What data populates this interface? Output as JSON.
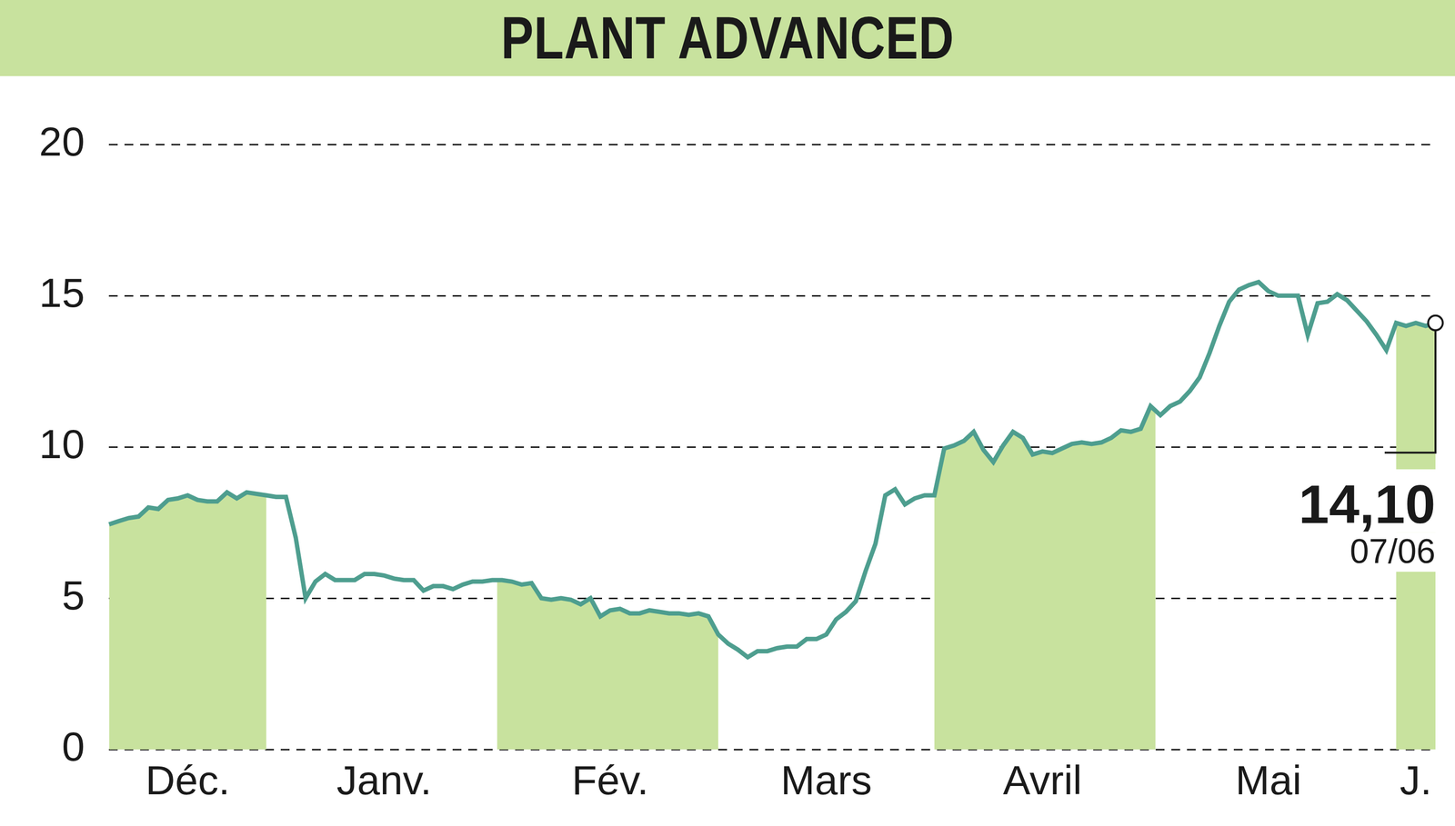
{
  "chart_data": {
    "type": "line",
    "title": "PLANT ADVANCED",
    "categories": [
      null,
      null,
      null,
      null,
      null,
      null,
      null,
      null,
      "Déc.",
      null,
      null,
      null,
      null,
      null,
      null,
      null,
      null,
      null,
      null,
      null,
      null,
      null,
      null,
      null,
      null,
      null,
      null,
      null,
      "Janv.",
      null,
      null,
      null,
      null,
      null,
      null,
      null,
      null,
      null,
      null,
      null,
      null,
      null,
      null,
      null,
      null,
      null,
      null,
      null,
      null,
      null,
      null,
      "Fév.",
      null,
      null,
      null,
      null,
      null,
      null,
      null,
      null,
      null,
      null,
      null,
      null,
      null,
      null,
      null,
      null,
      null,
      null,
      null,
      null,
      null,
      "Mars",
      null,
      null,
      null,
      null,
      null,
      null,
      null,
      null,
      null,
      null,
      null,
      null,
      null,
      null,
      null,
      null,
      null,
      null,
      null,
      null,
      null,
      "Avril",
      null,
      null,
      null,
      null,
      null,
      null,
      null,
      null,
      null,
      null,
      null,
      null,
      null,
      null,
      null,
      null,
      null,
      null,
      null,
      null,
      null,
      null,
      "Mai",
      null,
      null,
      null,
      null,
      null,
      null,
      null,
      null,
      null,
      null,
      null,
      null,
      null,
      null,
      "J.",
      null,
      null
    ],
    "series": [
      {
        "color": "#4e9e8f",
        "values": [
          7.44,
          7.55,
          7.65,
          7.7,
          8.0,
          7.95,
          8.25,
          8.3,
          8.4,
          8.25,
          8.2,
          8.2,
          8.5,
          8.3,
          8.5,
          8.45,
          8.4,
          8.35,
          8.35,
          7.0,
          5.0,
          5.55,
          5.8,
          5.6,
          5.6,
          5.6,
          5.8,
          5.8,
          5.75,
          5.65,
          5.6,
          5.6,
          5.25,
          5.4,
          5.4,
          5.3,
          5.45,
          5.55,
          5.55,
          5.6,
          5.6,
          5.55,
          5.45,
          5.5,
          5.0,
          4.95,
          5.0,
          4.95,
          4.8,
          5.0,
          4.4,
          4.6,
          4.65,
          4.5,
          4.5,
          4.6,
          4.55,
          4.5,
          4.5,
          4.45,
          4.5,
          4.4,
          3.8,
          3.5,
          3.3,
          3.05,
          3.25,
          3.25,
          3.35,
          3.4,
          3.4,
          3.65,
          3.65,
          3.8,
          4.3,
          4.55,
          4.9,
          5.9,
          6.8,
          8.4,
          8.6,
          8.1,
          8.3,
          8.4,
          8.4,
          9.95,
          10.05,
          10.2,
          10.5,
          9.9,
          9.5,
          10.05,
          10.5,
          10.3,
          9.75,
          9.85,
          9.8,
          9.95,
          10.1,
          10.15,
          10.1,
          10.15,
          10.3,
          10.55,
          10.5,
          10.6,
          11.35,
          11.05,
          11.35,
          11.5,
          11.85,
          12.3,
          13.1,
          14.0,
          14.8,
          15.2,
          15.35,
          15.45,
          15.15,
          15.0,
          15.0,
          15.0,
          13.7,
          14.75,
          14.8,
          15.05,
          14.85,
          14.5,
          14.15,
          13.7,
          13.2,
          14.1,
          14.0,
          14.1,
          14.0,
          14.1
        ]
      }
    ],
    "ylim": [
      0,
      20
    ],
    "yticks": [
      0,
      5,
      10,
      15,
      20
    ],
    "grid": true,
    "annotations": [
      {
        "value": 14.1,
        "label": "14,10",
        "date": "07/06"
      }
    ]
  }
}
